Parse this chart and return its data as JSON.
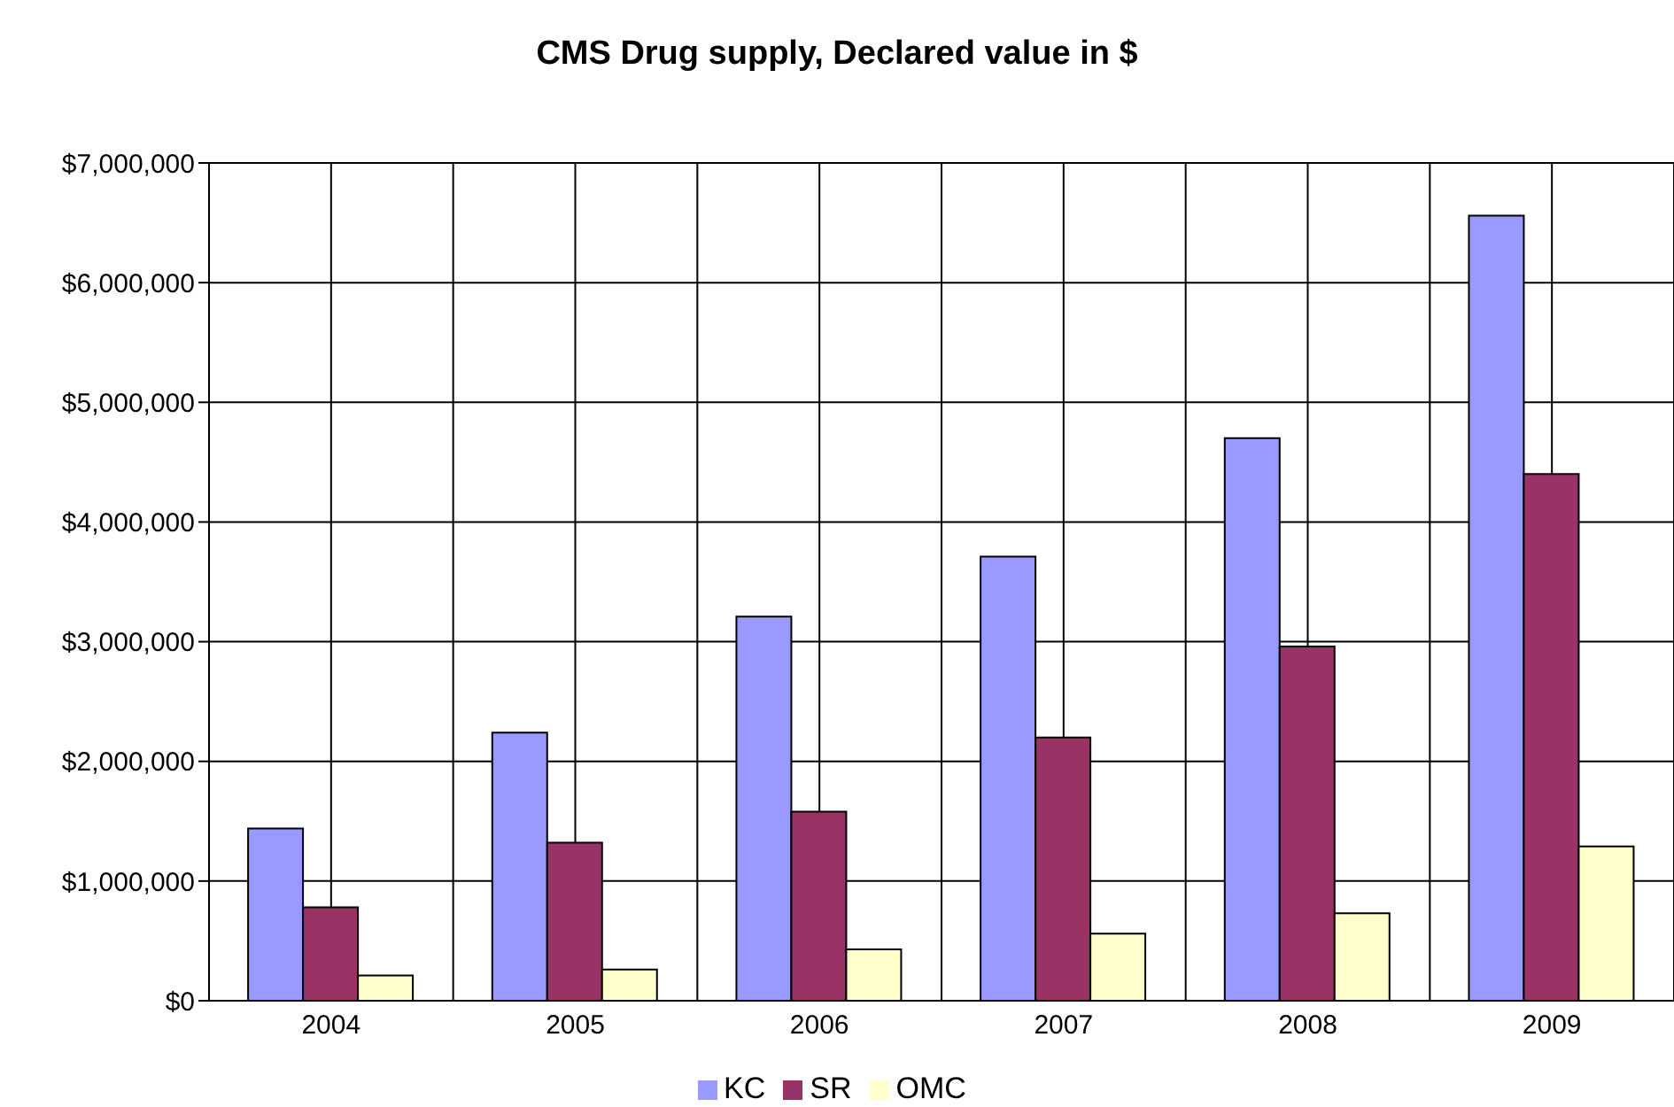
{
  "chart_data": {
    "type": "bar",
    "title": "CMS Drug supply, Declared value in $",
    "categories": [
      "2004",
      "2005",
      "2006",
      "2007",
      "2008",
      "2009"
    ],
    "series": [
      {
        "name": "KC",
        "color": "#9999ff",
        "values": [
          1440000,
          2240000,
          3210000,
          3710000,
          4700000,
          6560000
        ]
      },
      {
        "name": "SR",
        "color": "#993366",
        "values": [
          780000,
          1320000,
          1580000,
          2200000,
          2960000,
          4400000
        ]
      },
      {
        "name": "OMC",
        "color": "#ffffcc",
        "values": [
          210000,
          260000,
          430000,
          560000,
          730000,
          1290000
        ]
      }
    ],
    "ylim": [
      0,
      7000000
    ],
    "yticks": [
      {
        "value": 0,
        "label": "$0"
      },
      {
        "value": 1000000,
        "label": "$1,000,000"
      },
      {
        "value": 2000000,
        "label": "$2,000,000"
      },
      {
        "value": 3000000,
        "label": "$3,000,000"
      },
      {
        "value": 4000000,
        "label": "$4,000,000"
      },
      {
        "value": 5000000,
        "label": "$5,000,000"
      },
      {
        "value": 6000000,
        "label": "$6,000,000"
      },
      {
        "value": 7000000,
        "label": "$7,000,000"
      }
    ],
    "grid": true,
    "legend": "bottom"
  }
}
